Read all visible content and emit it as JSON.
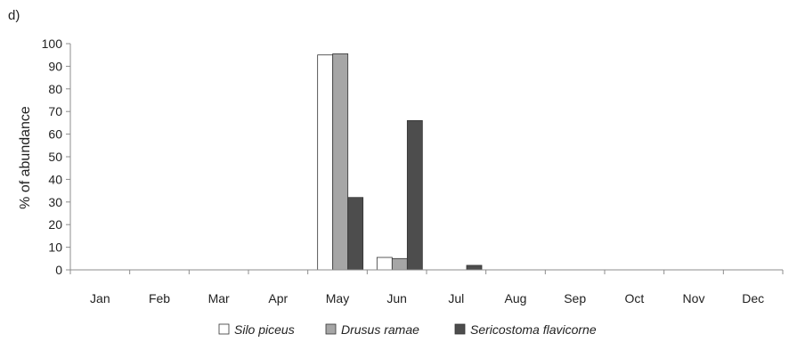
{
  "panel_label": "d)",
  "chart_data": {
    "type": "bar",
    "title": "",
    "xlabel": "",
    "ylabel": "% of abundance",
    "ylim": [
      0,
      100
    ],
    "yticks": [
      0,
      10,
      20,
      30,
      40,
      50,
      60,
      70,
      80,
      90,
      100
    ],
    "grid": false,
    "legend_position": "bottom",
    "categories": [
      "Jan",
      "Feb",
      "Mar",
      "Apr",
      "May",
      "Jun",
      "Jul",
      "Aug",
      "Sep",
      "Oct",
      "Nov",
      "Dec"
    ],
    "series": [
      {
        "name": "Silo piceus",
        "color": "#ffffff",
        "values": [
          0,
          0,
          0,
          0,
          95,
          5.5,
          0,
          0,
          0,
          0,
          0,
          0
        ]
      },
      {
        "name": "Drusus ramae",
        "color": "#a6a6a6",
        "values": [
          0,
          0,
          0,
          0,
          95.5,
          5,
          0,
          0,
          0,
          0,
          0,
          0
        ]
      },
      {
        "name": "Sericostoma flavicorne",
        "color": "#4d4d4d",
        "values": [
          0,
          0,
          0,
          0,
          32,
          66,
          2,
          0,
          0,
          0,
          0,
          0
        ]
      }
    ]
  }
}
